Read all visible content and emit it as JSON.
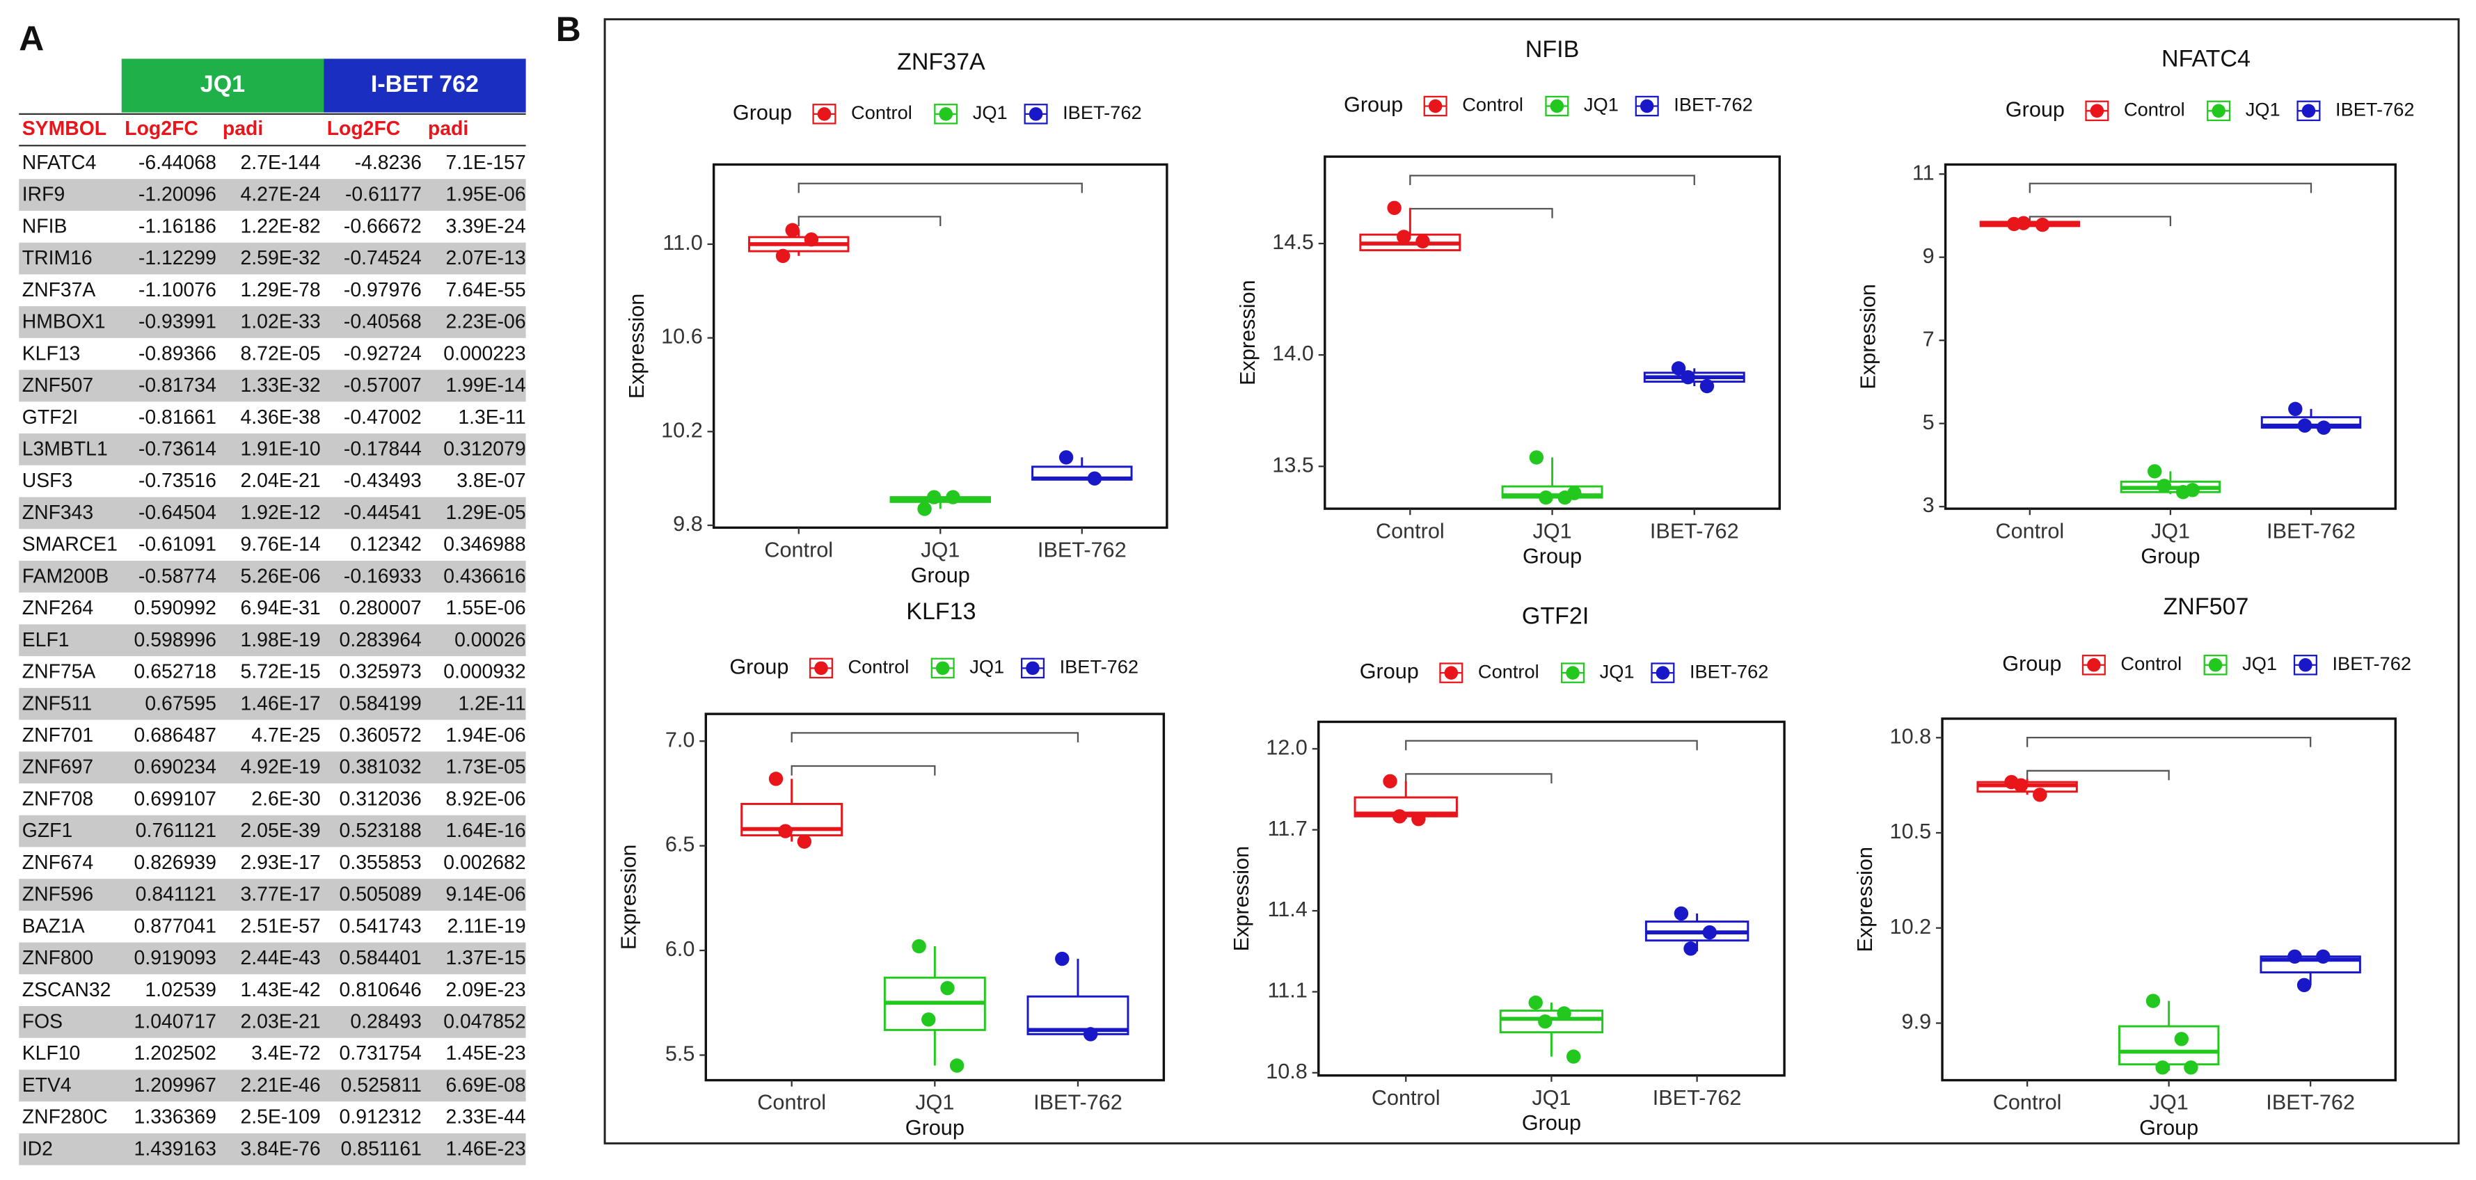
{
  "panel_a": {
    "label": "A",
    "groups": [
      "JQ1",
      "I-BET 762"
    ],
    "header": [
      "SYMBOL",
      "Log2FC",
      "padi",
      "Log2FC",
      "padi"
    ],
    "rows": [
      [
        "NFATC4",
        "-6.44068",
        "2.7E-144",
        "-4.8236",
        "7.1E-157"
      ],
      [
        "IRF9",
        "-1.20096",
        "4.27E-24",
        "-0.61177",
        "1.95E-06"
      ],
      [
        "NFIB",
        "-1.16186",
        "1.22E-82",
        "-0.66672",
        "3.39E-24"
      ],
      [
        "TRIM16",
        "-1.12299",
        "2.59E-32",
        "-0.74524",
        "2.07E-13"
      ],
      [
        "ZNF37A",
        "-1.10076",
        "1.29E-78",
        "-0.97976",
        "7.64E-55"
      ],
      [
        "HMBOX1",
        "-0.93991",
        "1.02E-33",
        "-0.40568",
        "2.23E-06"
      ],
      [
        "KLF13",
        "-0.89366",
        "8.72E-05",
        "-0.92724",
        "0.000223"
      ],
      [
        "ZNF507",
        "-0.81734",
        "1.33E-32",
        "-0.57007",
        "1.99E-14"
      ],
      [
        "GTF2I",
        "-0.81661",
        "4.36E-38",
        "-0.47002",
        "1.3E-11"
      ],
      [
        "L3MBTL1",
        "-0.73614",
        "1.91E-10",
        "-0.17844",
        "0.312079"
      ],
      [
        "USF3",
        "-0.73516",
        "2.04E-21",
        "-0.43493",
        "3.8E-07"
      ],
      [
        "ZNF343",
        "-0.64504",
        "1.92E-12",
        "-0.44541",
        "1.29E-05"
      ],
      [
        "SMARCE1",
        "-0.61091",
        "9.76E-14",
        "0.12342",
        "0.346988"
      ],
      [
        "FAM200B",
        "-0.58774",
        "5.26E-06",
        "-0.16933",
        "0.436616"
      ],
      [
        "ZNF264",
        "0.590992",
        "6.94E-31",
        "0.280007",
        "1.55E-06"
      ],
      [
        "ELF1",
        "0.598996",
        "1.98E-19",
        "0.283964",
        "0.00026"
      ],
      [
        "ZNF75A",
        "0.652718",
        "5.72E-15",
        "0.325973",
        "0.000932"
      ],
      [
        "ZNF511",
        "0.67595",
        "1.46E-17",
        "0.584199",
        "1.2E-11"
      ],
      [
        "ZNF701",
        "0.686487",
        "4.7E-25",
        "0.360572",
        "1.94E-06"
      ],
      [
        "ZNF697",
        "0.690234",
        "4.92E-19",
        "0.381032",
        "1.73E-05"
      ],
      [
        "ZNF708",
        "0.699107",
        "2.6E-30",
        "0.312036",
        "8.92E-06"
      ],
      [
        "GZF1",
        "0.761121",
        "2.05E-39",
        "0.523188",
        "1.64E-16"
      ],
      [
        "ZNF674",
        "0.826939",
        "2.93E-17",
        "0.355853",
        "0.002682"
      ],
      [
        "ZNF596",
        "0.841121",
        "3.77E-17",
        "0.505089",
        "9.14E-06"
      ],
      [
        "BAZ1A",
        "0.877041",
        "2.51E-57",
        "0.541743",
        "2.11E-19"
      ],
      [
        "ZNF800",
        "0.919093",
        "2.44E-43",
        "0.584401",
        "1.37E-15"
      ],
      [
        "ZSCAN32",
        "1.02539",
        "1.43E-42",
        "0.810646",
        "2.09E-23"
      ],
      [
        "FOS",
        "1.040717",
        "2.03E-21",
        "0.28493",
        "0.047852"
      ],
      [
        "KLF10",
        "1.202502",
        "3.4E-72",
        "0.731754",
        "1.45E-23"
      ],
      [
        "ETV4",
        "1.209967",
        "2.21E-46",
        "0.525811",
        "6.69E-08"
      ],
      [
        "ZNF280C",
        "1.336369",
        "2.5E-109",
        "0.912312",
        "2.33E-44"
      ],
      [
        "ID2",
        "1.439163",
        "3.84E-76",
        "0.851161",
        "1.46E-23"
      ]
    ]
  },
  "panel_b_label": "B",
  "chart_data": [
    {
      "type": "box",
      "title": "ZNF37A",
      "xlabel": "Group",
      "ylabel": "Expression",
      "legend_title": "Group",
      "categories": [
        "Control",
        "JQ1",
        "IBET-762"
      ],
      "ylim": [
        9.79,
        11.34
      ],
      "yticks": [
        9.8,
        10.2,
        10.6,
        {
          "value": 11,
          "label": "11.0"
        }
      ],
      "series": [
        {
          "name": "Control",
          "color": "#e8151b",
          "q1": 10.97,
          "median": 11.0,
          "q3": 11.03,
          "whisker_low": 10.95,
          "whisker_high": 11.06,
          "points": [
            10.95,
            11.02,
            11.06
          ]
        },
        {
          "name": "JQ1",
          "color": "#22c81e",
          "q1": 9.9,
          "median": 9.91,
          "q3": 9.92,
          "whisker_low": 9.87,
          "whisker_high": 9.92,
          "points": [
            9.87,
            9.92,
            9.92
          ]
        },
        {
          "name": "IBET-762",
          "color": "#1818c8",
          "q1": 9.995,
          "median": 10.0,
          "q3": 10.05,
          "whisker_low": 9.995,
          "whisker_high": 10.09,
          "points": [
            10.09,
            10.0
          ]
        }
      ]
    },
    {
      "type": "box",
      "title": "NFIB",
      "xlabel": "Group",
      "ylabel": "Expression",
      "legend_title": "Group",
      "categories": [
        "Control",
        "JQ1",
        "IBET-762"
      ],
      "ylim": [
        13.31,
        14.89
      ],
      "yticks": [
        13.5,
        {
          "value": 14,
          "label": "14.0"
        },
        14.5
      ],
      "series": [
        {
          "name": "Control",
          "color": "#e8151b",
          "q1": 14.47,
          "median": 14.5,
          "q3": 14.54,
          "whisker_low": 14.47,
          "whisker_high": 14.66,
          "points": [
            14.66,
            14.51,
            14.53
          ]
        },
        {
          "name": "JQ1",
          "color": "#22c81e",
          "q1": 13.36,
          "median": 13.37,
          "q3": 13.41,
          "whisker_low": 13.36,
          "whisker_high": 13.54,
          "points": [
            13.54,
            13.36,
            13.36,
            13.38
          ]
        },
        {
          "name": "IBET-762",
          "color": "#1818c8",
          "q1": 13.88,
          "median": 13.9,
          "q3": 13.92,
          "whisker_low": 13.86,
          "whisker_high": 13.94,
          "points": [
            13.94,
            13.86,
            13.9
          ]
        }
      ]
    },
    {
      "type": "box",
      "title": "NFATC4",
      "xlabel": "Group",
      "ylabel": "Expression",
      "legend_title": "Group",
      "categories": [
        "Control",
        "JQ1",
        "IBET-762"
      ],
      "ylim": [
        2.95,
        11.23
      ],
      "yticks": [
        3,
        5,
        7,
        9,
        11
      ],
      "series": [
        {
          "name": "Control",
          "color": "#e8151b",
          "q1": 9.75,
          "median": 9.8,
          "q3": 9.85,
          "whisker_low": 9.75,
          "whisker_high": 9.85,
          "points": [
            9.8,
            9.78,
            9.82
          ]
        },
        {
          "name": "JQ1",
          "color": "#22c81e",
          "q1": 3.35,
          "median": 3.45,
          "q3": 3.6,
          "whisker_low": 3.3,
          "whisker_high": 3.85,
          "points": [
            3.85,
            3.35,
            3.5,
            3.4
          ]
        },
        {
          "name": "IBET-762",
          "color": "#1818c8",
          "q1": 4.9,
          "median": 4.95,
          "q3": 5.15,
          "whisker_low": 4.9,
          "whisker_high": 5.35,
          "points": [
            5.35,
            4.9,
            4.95
          ]
        }
      ]
    },
    {
      "type": "box",
      "title": "KLF13",
      "xlabel": "Group",
      "ylabel": "Expression",
      "legend_title": "Group",
      "categories": [
        "Control",
        "JQ1",
        "IBET-762"
      ],
      "ylim": [
        5.38,
        7.13
      ],
      "yticks": [
        5.5,
        {
          "value": 6,
          "label": "6.0"
        },
        6.5,
        {
          "value": 7,
          "label": "7.0"
        }
      ],
      "series": [
        {
          "name": "Control",
          "color": "#e8151b",
          "q1": 6.55,
          "median": 6.58,
          "q3": 6.7,
          "whisker_low": 6.52,
          "whisker_high": 6.82,
          "points": [
            6.82,
            6.52,
            6.57
          ]
        },
        {
          "name": "JQ1",
          "color": "#22c81e",
          "q1": 5.62,
          "median": 5.75,
          "q3": 5.87,
          "whisker_low": 5.45,
          "whisker_high": 6.02,
          "points": [
            6.02,
            5.82,
            5.67,
            5.45
          ]
        },
        {
          "name": "IBET-762",
          "color": "#1818c8",
          "q1": 5.6,
          "median": 5.62,
          "q3": 5.78,
          "whisker_low": 5.6,
          "whisker_high": 5.96,
          "points": [
            5.96,
            5.6
          ]
        }
      ]
    },
    {
      "type": "box",
      "title": "GTF2I",
      "xlabel": "Group",
      "ylabel": "Expression",
      "legend_title": "Group",
      "categories": [
        "Control",
        "JQ1",
        "IBET-762"
      ],
      "ylim": [
        10.79,
        12.1
      ],
      "yticks": [
        10.8,
        11.1,
        11.4,
        11.7,
        {
          "value": 12,
          "label": "12.0"
        }
      ],
      "series": [
        {
          "name": "Control",
          "color": "#e8151b",
          "q1": 11.75,
          "median": 11.76,
          "q3": 11.82,
          "whisker_low": 11.74,
          "whisker_high": 11.88,
          "points": [
            11.88,
            11.74,
            11.75
          ]
        },
        {
          "name": "JQ1",
          "color": "#22c81e",
          "q1": 10.95,
          "median": 11.0,
          "q3": 11.03,
          "whisker_low": 10.86,
          "whisker_high": 11.06,
          "points": [
            11.06,
            11.02,
            10.99,
            10.86
          ]
        },
        {
          "name": "IBET-762",
          "color": "#1818c8",
          "q1": 11.29,
          "median": 11.32,
          "q3": 11.36,
          "whisker_low": 11.25,
          "whisker_high": 11.39,
          "points": [
            11.39,
            11.32,
            11.26
          ]
        }
      ]
    },
    {
      "type": "box",
      "title": "ZNF507",
      "xlabel": "Group",
      "ylabel": "Expression",
      "legend_title": "Group",
      "categories": [
        "Control",
        "JQ1",
        "IBET-762"
      ],
      "ylim": [
        9.72,
        10.86
      ],
      "yticks": [
        9.9,
        10.2,
        10.5,
        10.8
      ],
      "series": [
        {
          "name": "Control",
          "color": "#e8151b",
          "q1": 10.63,
          "median": 10.65,
          "q3": 10.66,
          "whisker_low": 10.62,
          "whisker_high": 10.67,
          "points": [
            10.66,
            10.62,
            10.65
          ]
        },
        {
          "name": "JQ1",
          "color": "#22c81e",
          "q1": 9.77,
          "median": 9.81,
          "q3": 9.89,
          "whisker_low": 9.75,
          "whisker_high": 9.97,
          "points": [
            9.97,
            9.85,
            9.76,
            9.76
          ]
        },
        {
          "name": "IBET-762",
          "color": "#1818c8",
          "q1": 10.06,
          "median": 10.1,
          "q3": 10.11,
          "whisker_low": 10.02,
          "whisker_high": 10.11,
          "points": [
            10.11,
            10.11,
            10.02
          ]
        }
      ]
    }
  ]
}
